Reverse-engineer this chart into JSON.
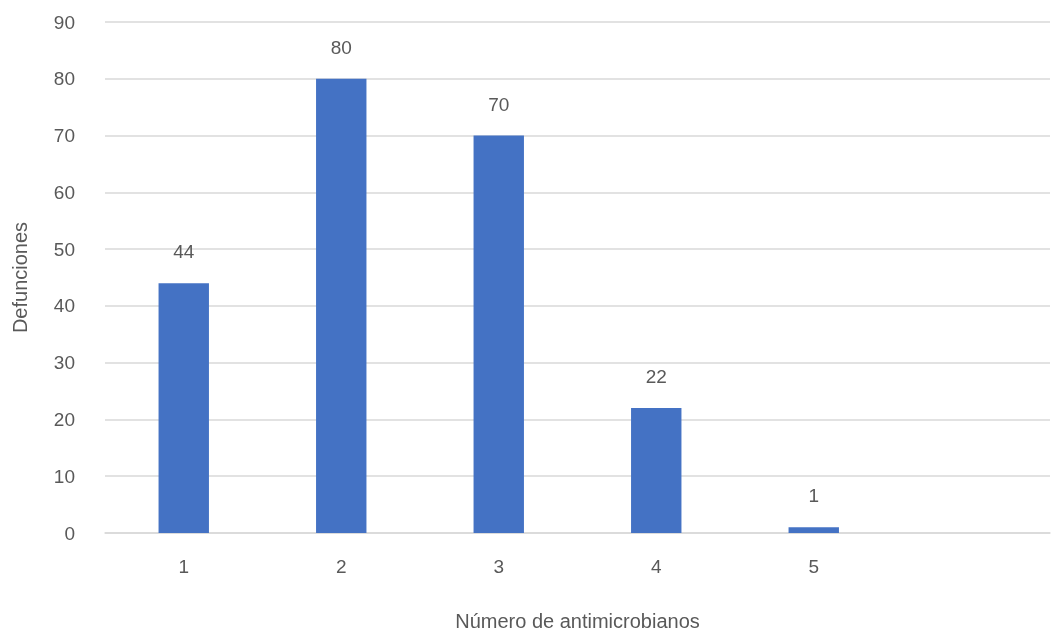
{
  "chart_data": {
    "type": "bar",
    "xlabel": "Número de antimicrobianos",
    "ylabel": "Defunciones",
    "categories": [
      "1",
      "2",
      "3",
      "4",
      "5",
      null
    ],
    "values": [
      44,
      80,
      70,
      22,
      1,
      null
    ],
    "color": "#4472c4",
    "ylim": [
      0,
      90
    ],
    "yticks": [
      0,
      10,
      20,
      30,
      40,
      50,
      60,
      70,
      80,
      90
    ],
    "grid": "y",
    "data_labels": true
  }
}
